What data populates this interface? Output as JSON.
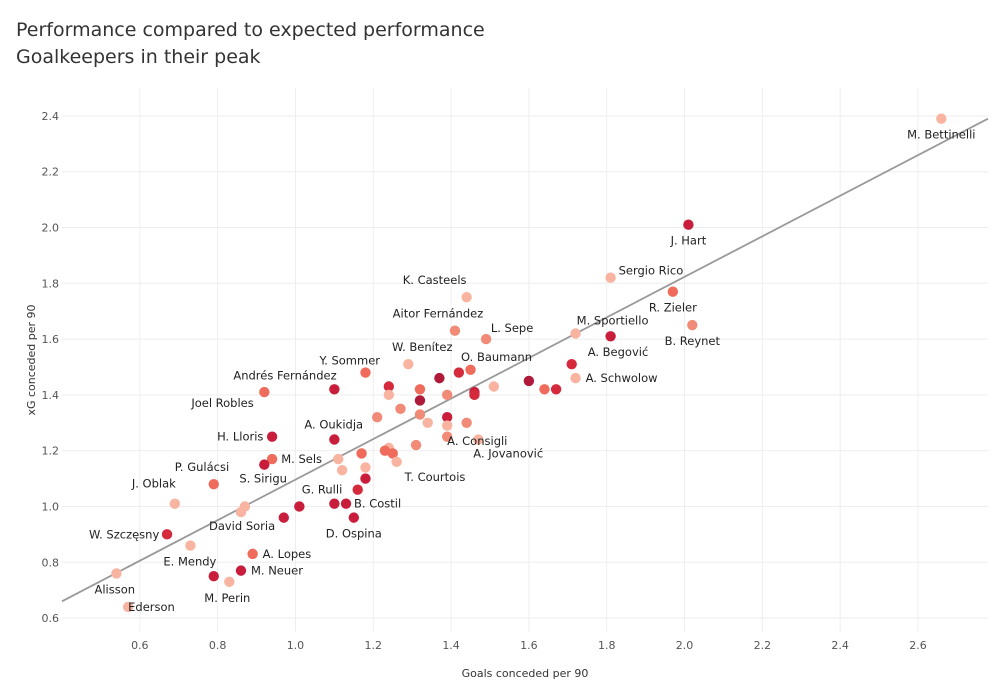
{
  "header": {
    "title": "Performance compared to expected performance",
    "subtitle": "Goalkeepers in their peak"
  },
  "chart_data": {
    "type": "scatter",
    "title": "Performance compared to expected performance",
    "subtitle": "Goalkeepers in their peak",
    "xlabel": "Goals conceded per 90",
    "ylabel": "xG conceded per 90",
    "xlim": [
      0.4,
      2.78
    ],
    "ylim": [
      0.55,
      2.5
    ],
    "xticks": [
      0.6,
      0.8,
      1.0,
      1.2,
      1.4,
      1.6,
      1.8,
      2.0,
      2.2,
      2.4,
      2.6
    ],
    "yticks": [
      0.6,
      0.8,
      1.0,
      1.2,
      1.4,
      1.6,
      1.8,
      2.0,
      2.2,
      2.4
    ],
    "grid": true,
    "trendline": {
      "x": [
        0.4,
        2.78
      ],
      "y": [
        0.66,
        2.39
      ]
    },
    "colors": {
      "light": "#f8b4a0",
      "medium": "#f07868",
      "dark": "#d42a3c",
      "darker": "#b01a3a",
      "trendline": "#999999"
    },
    "points": [
      {
        "x": 2.66,
        "y": 2.39,
        "label": "M. Bettinelli",
        "color": "#f8b4a0"
      },
      {
        "x": 2.01,
        "y": 2.01,
        "label": "J. Hart",
        "color": "#c81e3c"
      },
      {
        "x": 1.81,
        "y": 1.82,
        "label": "Sergio Rico",
        "color": "#f8b4a0"
      },
      {
        "x": 1.97,
        "y": 1.77,
        "label": "R. Zieler",
        "color": "#ef6b5c"
      },
      {
        "x": 2.02,
        "y": 1.65,
        "label": "B. Reynet",
        "color": "#f28a78"
      },
      {
        "x": 1.44,
        "y": 1.75,
        "label": "K. Casteels",
        "color": "#f8b4a0"
      },
      {
        "x": 1.41,
        "y": 1.63,
        "label": "Aitor Fernández",
        "color": "#f28a78"
      },
      {
        "x": 1.49,
        "y": 1.6,
        "label": "L. Sepe",
        "color": "#f28a78"
      },
      {
        "x": 1.72,
        "y": 1.62,
        "label": "M. Sportiello",
        "color": "#f8b4a0"
      },
      {
        "x": 1.81,
        "y": 1.61,
        "label": "",
        "color": "#c81e3c"
      },
      {
        "x": 1.29,
        "y": 1.51,
        "label": "W. Benítez",
        "color": "#f8b4a0"
      },
      {
        "x": 1.45,
        "y": 1.49,
        "label": "O. Baumann",
        "color": "#ef6b5c"
      },
      {
        "x": 1.71,
        "y": 1.51,
        "label": "A. Begović",
        "color": "#d42a3c"
      },
      {
        "x": 1.72,
        "y": 1.46,
        "label": "A. Schwolow",
        "color": "#f8b4a0"
      },
      {
        "x": 1.18,
        "y": 1.48,
        "label": "Y. Sommer",
        "color": "#ef6b5c"
      },
      {
        "x": 1.1,
        "y": 1.42,
        "label": "Andrés Fernández",
        "color": "#c81e3c"
      },
      {
        "x": 0.92,
        "y": 1.41,
        "label": "Joel Robles",
        "color": "#ef6b5c"
      },
      {
        "x": 1.37,
        "y": 1.46,
        "label": "",
        "color": "#b01a3a"
      },
      {
        "x": 1.42,
        "y": 1.48,
        "label": "",
        "color": "#d42a3c"
      },
      {
        "x": 1.24,
        "y": 1.43,
        "label": "",
        "color": "#d42a3c"
      },
      {
        "x": 1.32,
        "y": 1.42,
        "label": "",
        "color": "#ef6b5c"
      },
      {
        "x": 1.24,
        "y": 1.4,
        "label": "",
        "color": "#f8b4a0"
      },
      {
        "x": 1.32,
        "y": 1.38,
        "label": "",
        "color": "#b01a3a"
      },
      {
        "x": 1.39,
        "y": 1.4,
        "label": "",
        "color": "#f28a78"
      },
      {
        "x": 1.46,
        "y": 1.41,
        "label": "",
        "color": "#c81e3c"
      },
      {
        "x": 1.46,
        "y": 1.4,
        "label": "",
        "color": "#d42a3c"
      },
      {
        "x": 1.51,
        "y": 1.43,
        "label": "",
        "color": "#f8b4a0"
      },
      {
        "x": 1.6,
        "y": 1.45,
        "label": "",
        "color": "#b01a3a"
      },
      {
        "x": 1.64,
        "y": 1.42,
        "label": "",
        "color": "#ef6b5c"
      },
      {
        "x": 1.67,
        "y": 1.42,
        "label": "",
        "color": "#d42a3c"
      },
      {
        "x": 1.27,
        "y": 1.35,
        "label": "",
        "color": "#f28a78"
      },
      {
        "x": 1.21,
        "y": 1.32,
        "label": "",
        "color": "#f28a78"
      },
      {
        "x": 1.32,
        "y": 1.33,
        "label": "",
        "color": "#f28a78"
      },
      {
        "x": 1.39,
        "y": 1.32,
        "label": "A. Consigli",
        "color": "#c81e3c"
      },
      {
        "x": 1.34,
        "y": 1.3,
        "label": "",
        "color": "#f8b4a0"
      },
      {
        "x": 1.39,
        "y": 1.29,
        "label": "",
        "color": "#f8b4a0"
      },
      {
        "x": 1.44,
        "y": 1.3,
        "label": "",
        "color": "#f28a78"
      },
      {
        "x": 1.1,
        "y": 1.24,
        "label": "A. Oukidja",
        "color": "#c81e3c"
      },
      {
        "x": 0.94,
        "y": 1.25,
        "label": "H. Lloris",
        "color": "#c81e3c"
      },
      {
        "x": 1.39,
        "y": 1.25,
        "label": "",
        "color": "#f28a78"
      },
      {
        "x": 1.31,
        "y": 1.22,
        "label": "",
        "color": "#f28a78"
      },
      {
        "x": 1.47,
        "y": 1.24,
        "label": "A. Jovanović",
        "color": "#f8b4a0"
      },
      {
        "x": 1.24,
        "y": 1.21,
        "label": "",
        "color": "#f8b4a0"
      },
      {
        "x": 1.23,
        "y": 1.2,
        "label": "",
        "color": "#ef6b5c"
      },
      {
        "x": 1.25,
        "y": 1.19,
        "label": "",
        "color": "#ef6b5c"
      },
      {
        "x": 1.17,
        "y": 1.19,
        "label": "",
        "color": "#ef6b5c"
      },
      {
        "x": 1.11,
        "y": 1.17,
        "label": "M. Sels",
        "color": "#f8b4a0"
      },
      {
        "x": 0.94,
        "y": 1.17,
        "label": "",
        "color": "#ef6b5c"
      },
      {
        "x": 0.92,
        "y": 1.15,
        "label": "S. Sirigu",
        "color": "#c81e3c"
      },
      {
        "x": 1.26,
        "y": 1.16,
        "label": "T. Courtois",
        "color": "#f8b4a0"
      },
      {
        "x": 1.12,
        "y": 1.13,
        "label": "",
        "color": "#f8b4a0"
      },
      {
        "x": 1.18,
        "y": 1.14,
        "label": "",
        "color": "#f8b4a0"
      },
      {
        "x": 1.18,
        "y": 1.1,
        "label": "",
        "color": "#c81e3c"
      },
      {
        "x": 0.79,
        "y": 1.08,
        "label": "P. Gulácsi",
        "color": "#ef6b5c"
      },
      {
        "x": 1.16,
        "y": 1.06,
        "label": "G. Rulli",
        "color": "#d42a3c"
      },
      {
        "x": 0.69,
        "y": 1.01,
        "label": "J. Oblak",
        "color": "#f8b4a0"
      },
      {
        "x": 1.1,
        "y": 1.01,
        "label": "",
        "color": "#c81e3c"
      },
      {
        "x": 1.13,
        "y": 1.01,
        "label": "B. Costil",
        "color": "#c81e3c"
      },
      {
        "x": 1.01,
        "y": 1.0,
        "label": "",
        "color": "#c81e3c"
      },
      {
        "x": 0.87,
        "y": 1.0,
        "label": "",
        "color": "#f8b4a0"
      },
      {
        "x": 0.86,
        "y": 0.98,
        "label": "David Soria",
        "color": "#f8b4a0"
      },
      {
        "x": 0.97,
        "y": 0.96,
        "label": "",
        "color": "#c81e3c"
      },
      {
        "x": 1.15,
        "y": 0.96,
        "label": "D. Ospina",
        "color": "#c81e3c"
      },
      {
        "x": 0.67,
        "y": 0.9,
        "label": "W. Szczęsny",
        "color": "#d42a3c"
      },
      {
        "x": 0.73,
        "y": 0.86,
        "label": "E. Mendy",
        "color": "#f8b4a0"
      },
      {
        "x": 0.89,
        "y": 0.83,
        "label": "A. Lopes",
        "color": "#ef6b5c"
      },
      {
        "x": 0.86,
        "y": 0.77,
        "label": "M. Neuer",
        "color": "#c81e3c"
      },
      {
        "x": 0.79,
        "y": 0.75,
        "label": "",
        "color": "#c81e3c"
      },
      {
        "x": 0.83,
        "y": 0.73,
        "label": "M. Perin",
        "color": "#f8b4a0"
      },
      {
        "x": 0.54,
        "y": 0.76,
        "label": "Alisson",
        "color": "#f8b4a0"
      },
      {
        "x": 0.57,
        "y": 0.64,
        "label": "Ederson",
        "color": "#f8b4a0"
      }
    ]
  }
}
